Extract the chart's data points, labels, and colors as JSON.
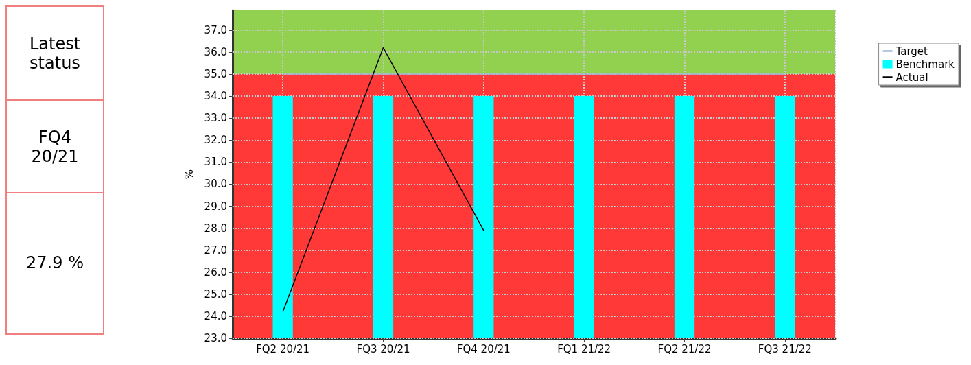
{
  "chart_data": {
    "type": "bar",
    "ylabel": "%",
    "categories": [
      "FQ2 20/21",
      "FQ3 20/21",
      "FQ4 20/21",
      "FQ1 21/22",
      "FQ2 21/22",
      "FQ3 21/22"
    ],
    "series": [
      {
        "name": "Target",
        "type": "line",
        "color": "#a0b8d8",
        "values": [
          35,
          35,
          35,
          35,
          35,
          35
        ]
      },
      {
        "name": "Benchmark",
        "color": "#00ffff",
        "values": [
          34,
          34,
          34,
          34,
          34,
          34
        ]
      },
      {
        "name": "Actual",
        "type": "line",
        "color": "#000000",
        "values": [
          24.2,
          36.2,
          27.9,
          null,
          null,
          null
        ]
      }
    ],
    "bands": [
      {
        "axis": "y",
        "from": 23,
        "to": 35,
        "color": "#ff3838"
      },
      {
        "axis": "y",
        "from": 35,
        "to": 37.9,
        "color": "#92d050"
      }
    ],
    "ylim": [
      23,
      37.9
    ],
    "yticks": [
      {
        "value": 23,
        "label": "23.0"
      },
      {
        "value": 24,
        "label": "24.0"
      },
      {
        "value": 25,
        "label": "25.0"
      },
      {
        "value": 26,
        "label": "26.0"
      },
      {
        "value": 27,
        "label": "27.0"
      },
      {
        "value": 28,
        "label": "28.0"
      },
      {
        "value": 29,
        "label": "29.0"
      },
      {
        "value": 30,
        "label": "30.0"
      },
      {
        "value": 31,
        "label": "31.0"
      },
      {
        "value": 32,
        "label": "32.0"
      },
      {
        "value": 33,
        "label": "33.0"
      },
      {
        "value": 34,
        "label": "34.0"
      },
      {
        "value": 35,
        "label": "35.0"
      },
      {
        "value": 36,
        "label": "36.0"
      },
      {
        "value": 37,
        "label": "37.0"
      }
    ],
    "grid": true,
    "legend": "top right",
    "marker": "none",
    "line_style": "solid",
    "annotations": [
      "Latest status",
      "FQ4 20/21",
      "27.9 %"
    ]
  }
}
